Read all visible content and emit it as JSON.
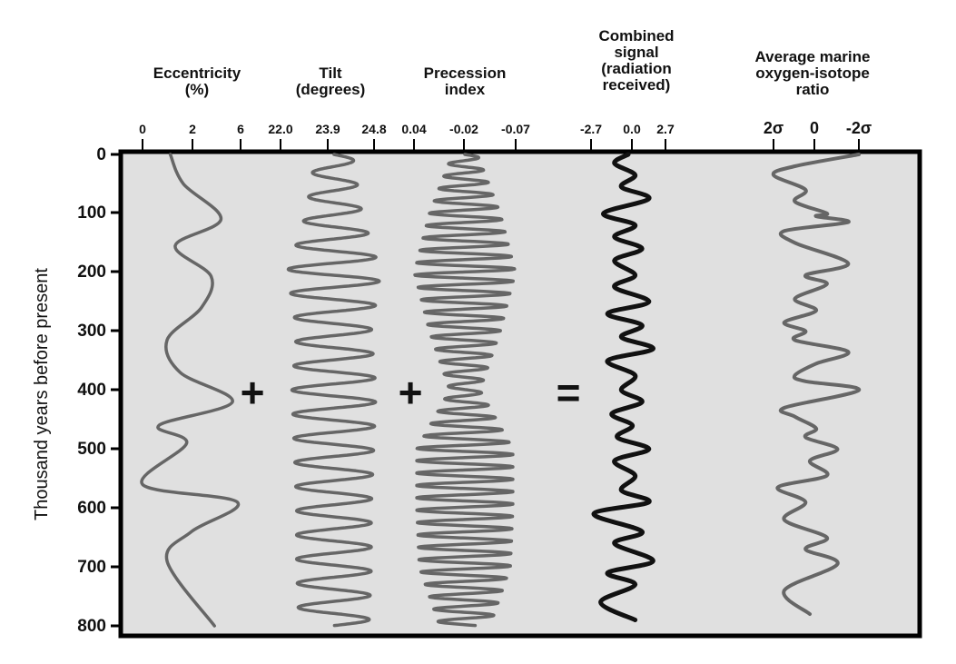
{
  "caption": "",
  "chart_data": {
    "type": "line",
    "orientation": "vertical-depth",
    "ylabel": "Thousand years before present",
    "y_ticks": [
      "0",
      "100",
      "200",
      "300",
      "400",
      "500",
      "600",
      "700",
      "800"
    ],
    "ylim": [
      0,
      800
    ],
    "y_reversed": true,
    "grid": false,
    "background": "#e0e0e0",
    "operators": [
      "+",
      "+",
      "="
    ],
    "panels": [
      {
        "name": "eccentricity",
        "title_lines": [
          "Eccentricity",
          "(%)"
        ],
        "x_ticks": [
          "0",
          "2",
          "6"
        ],
        "xlim": [
          0,
          6
        ],
        "color": "#666666",
        "x": [
          1.7,
          2.5,
          4.8,
          2.0,
          4.2,
          3.6,
          1.5,
          2.3,
          5.5,
          1.0,
          2.7,
          0.0,
          5.8,
          3.0,
          1.5,
          4.4
        ],
        "y": [
          0,
          50,
          110,
          155,
          207,
          260,
          315,
          370,
          420,
          460,
          490,
          560,
          590,
          640,
          690,
          800
        ]
      },
      {
        "name": "tilt",
        "title_lines": [
          "Tilt",
          "(degrees)"
        ],
        "x_ticks": [
          "22.0",
          "23.9",
          "24.8"
        ],
        "xlim": [
          22.0,
          24.8
        ],
        "color": "#666666",
        "period": 41,
        "amp_points": [
          0.4,
          0.6,
          1.0,
          0.8,
          0.9,
          0.85,
          0.8,
          0.8,
          0.75
        ],
        "center": 23.6
      },
      {
        "name": "precession",
        "title_lines": [
          "Precession",
          "index"
        ],
        "x_ticks": [
          "0.04",
          "-0.02",
          "-0.07"
        ],
        "xlim": [
          0.04,
          -0.07
        ],
        "color": "#666666",
        "period": 21,
        "amp_points": [
          0.25,
          0.7,
          1.0,
          0.7,
          0.3,
          0.95,
          0.95,
          0.9,
          0.5
        ],
        "center": -0.015
      },
      {
        "name": "combined-signal",
        "title_lines": [
          "Combined",
          "signal",
          "(radiation",
          "received)"
        ],
        "x_ticks": [
          "-2.7",
          "0.0",
          "2.7"
        ],
        "xlim": [
          -2.7,
          2.7
        ],
        "color": "#111111",
        "x": [
          0.0,
          -1.0,
          0.5,
          -0.5,
          1.5,
          -1.8,
          0.5,
          -1.0,
          1.0,
          -1.0,
          0.5,
          -1.0,
          1.5,
          -1.5,
          1.0,
          -0.5,
          1.8,
          -1.5,
          0.5,
          -0.5,
          1.0,
          -1.2,
          0.3,
          -0.8,
          1.5,
          -1.0,
          0.5,
          -0.5,
          1.5,
          -2.5,
          1.0,
          -1.0,
          1.8,
          -1.5,
          0.5,
          -2.0,
          0.5
        ],
        "y": [
          0,
          15,
          35,
          55,
          75,
          100,
          120,
          140,
          160,
          180,
          205,
          225,
          250,
          270,
          290,
          310,
          330,
          350,
          375,
          400,
          420,
          440,
          460,
          480,
          500,
          520,
          545,
          570,
          590,
          610,
          640,
          660,
          690,
          710,
          730,
          760,
          790
        ]
      },
      {
        "name": "oxygen-isotope",
        "title_lines": [
          "Average marine",
          "oxygen-isotope",
          "ratio"
        ],
        "x_ticks": [
          "2σ",
          "0",
          "-2σ"
        ],
        "xlim": [
          2,
          -2
        ],
        "color": "#666666",
        "x": [
          -2.0,
          1.0,
          2.0,
          0.5,
          1.0,
          -0.5,
          0.0,
          -1.5,
          1.5,
          1.0,
          -1.5,
          0.5,
          -0.5,
          1.0,
          0.0,
          1.5,
          0.5,
          1.0,
          -1.5,
          0.0,
          1.0,
          0.5,
          -2.0,
          1.5,
          1.0,
          0.0,
          0.5,
          -1.0,
          0.3,
          -0.5,
          1.8,
          0.5,
          1.5,
          -0.5,
          0.5,
          -1.0,
          1.5,
          0.3
        ],
        "y": [
          0,
          20,
          35,
          60,
          80,
          100,
          105,
          115,
          130,
          150,
          185,
          205,
          220,
          245,
          265,
          285,
          300,
          315,
          335,
          355,
          375,
          385,
          400,
          430,
          445,
          465,
          480,
          500,
          520,
          545,
          565,
          590,
          620,
          650,
          670,
          695,
          740,
          780
        ]
      }
    ]
  }
}
